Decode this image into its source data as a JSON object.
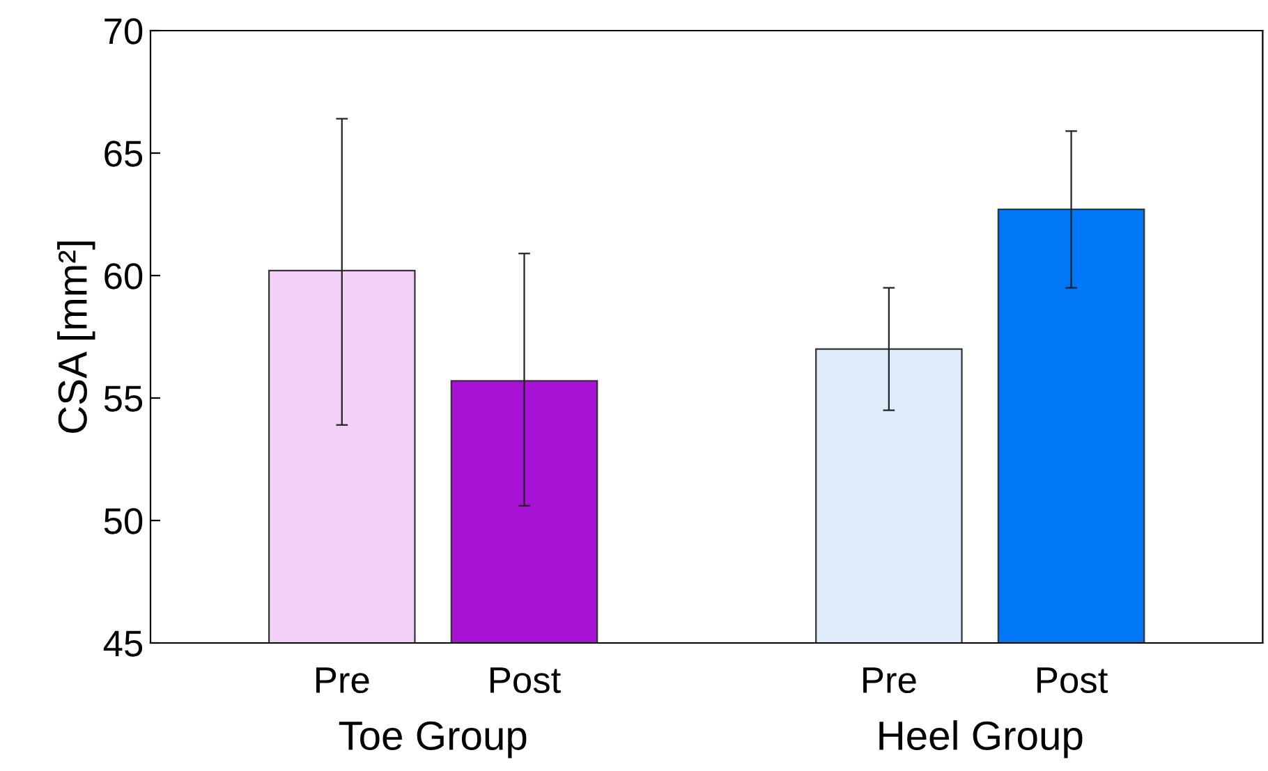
{
  "chart_data": {
    "type": "bar",
    "ylabel": "CSA [mm²]",
    "categories": [
      "Pre",
      "Post",
      null,
      "Pre",
      "Post"
    ],
    "values": [
      60.2,
      55.7,
      null,
      57.0,
      62.7
    ],
    "colors": [
      "#f2d0f8",
      "#a712d4",
      "#ffffff",
      "#deebfb",
      "#0077f7"
    ],
    "errors": [
      [
        53.9,
        66.4
      ],
      [
        50.6,
        60.9
      ],
      null,
      [
        54.5,
        59.5
      ],
      [
        59.5,
        65.9
      ]
    ],
    "ylim": [
      45,
      70
    ],
    "yticks": [
      45,
      50,
      55,
      60,
      65,
      70
    ],
    "grid": false,
    "legend": false,
    "annotations": [
      "Toe Group",
      "Heel Group"
    ]
  }
}
